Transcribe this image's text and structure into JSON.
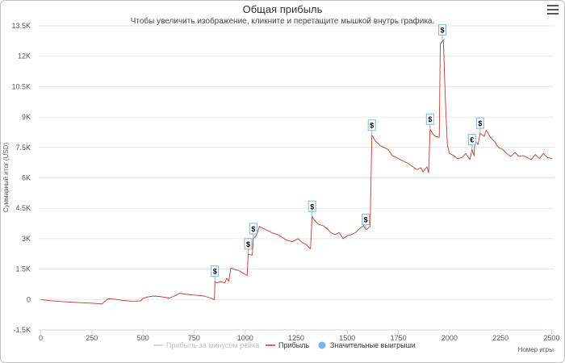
{
  "chart_data": {
    "type": "line",
    "title": "Общая прибыль",
    "subtitle": "Чтобы увеличить изображение, кликните и перетащите мышкой внутрь графика.",
    "xlabel": "Номер игры",
    "ylabel": "Суммарный итог (USD)",
    "xlim": [
      -10,
      2510
    ],
    "ylim": [
      -1500,
      13500
    ],
    "x_ticks": [
      "0",
      "250",
      "500",
      "750",
      "1000",
      "1250",
      "1500",
      "1750",
      "2000",
      "2250",
      "2500"
    ],
    "x_tick_values": [
      0,
      250,
      500,
      750,
      1000,
      1250,
      1500,
      1750,
      2000,
      2250,
      2500
    ],
    "y_ticks": [
      "-1.5K",
      "0",
      "1.5K",
      "3K",
      "4.5K",
      "6K",
      "7.5K",
      "9K",
      "10.5K",
      "12K",
      "13.5K"
    ],
    "y_tick_values": [
      -1500,
      0,
      1500,
      3000,
      4500,
      6000,
      7500,
      9000,
      10500,
      12000,
      13500
    ],
    "grid": true,
    "legend_position": "bottom",
    "series": [
      {
        "name": "Прибыль за минусом рейка",
        "color": "#cccccc",
        "hidden": true,
        "points": []
      },
      {
        "name": "Прибыль",
        "color": "#c0392b",
        "points": [
          [
            0,
            0
          ],
          [
            50,
            -60
          ],
          [
            100,
            -100
          ],
          [
            150,
            -130
          ],
          [
            200,
            -160
          ],
          [
            250,
            -180
          ],
          [
            300,
            -220
          ],
          [
            310,
            -120
          ],
          [
            330,
            30
          ],
          [
            360,
            20
          ],
          [
            400,
            -40
          ],
          [
            450,
            -90
          ],
          [
            490,
            -60
          ],
          [
            500,
            60
          ],
          [
            520,
            120
          ],
          [
            550,
            170
          ],
          [
            580,
            150
          ],
          [
            600,
            120
          ],
          [
            630,
            70
          ],
          [
            660,
            200
          ],
          [
            680,
            310
          ],
          [
            700,
            270
          ],
          [
            750,
            220
          ],
          [
            800,
            170
          ],
          [
            830,
            70
          ],
          [
            850,
            -10
          ],
          [
            852,
            900
          ],
          [
            860,
            820
          ],
          [
            880,
            880
          ],
          [
            900,
            820
          ],
          [
            910,
            1050
          ],
          [
            920,
            900
          ],
          [
            930,
            1550
          ],
          [
            950,
            1480
          ],
          [
            970,
            1420
          ],
          [
            990,
            1300
          ],
          [
            1010,
            1180
          ],
          [
            1015,
            2250
          ],
          [
            1025,
            2200
          ],
          [
            1035,
            2200
          ],
          [
            1040,
            3000
          ],
          [
            1050,
            3100
          ],
          [
            1060,
            3300
          ],
          [
            1070,
            3600
          ],
          [
            1100,
            3450
          ],
          [
            1130,
            3300
          ],
          [
            1160,
            3200
          ],
          [
            1200,
            2950
          ],
          [
            1230,
            2850
          ],
          [
            1260,
            3000
          ],
          [
            1280,
            2800
          ],
          [
            1300,
            2700
          ],
          [
            1320,
            2500
          ],
          [
            1328,
            4100
          ],
          [
            1340,
            3900
          ],
          [
            1360,
            3700
          ],
          [
            1380,
            3650
          ],
          [
            1400,
            3500
          ],
          [
            1420,
            3300
          ],
          [
            1440,
            3200
          ],
          [
            1460,
            3300
          ],
          [
            1480,
            3000
          ],
          [
            1500,
            3150
          ],
          [
            1520,
            3200
          ],
          [
            1540,
            3300
          ],
          [
            1560,
            3500
          ],
          [
            1580,
            3650
          ],
          [
            1590,
            3450
          ],
          [
            1600,
            3500
          ],
          [
            1612,
            3600
          ],
          [
            1620,
            8100
          ],
          [
            1640,
            7800
          ],
          [
            1660,
            7600
          ],
          [
            1700,
            7400
          ],
          [
            1720,
            7100
          ],
          [
            1760,
            6900
          ],
          [
            1800,
            6700
          ],
          [
            1840,
            6400
          ],
          [
            1860,
            6500
          ],
          [
            1870,
            6300
          ],
          [
            1890,
            6550
          ],
          [
            1898,
            6250
          ],
          [
            1905,
            8400
          ],
          [
            1920,
            8150
          ],
          [
            1930,
            8050
          ],
          [
            1950,
            8000
          ],
          [
            1955,
            12600
          ],
          [
            1970,
            12800
          ],
          [
            1980,
            9800
          ],
          [
            1990,
            7600
          ],
          [
            2000,
            7200
          ],
          [
            2020,
            7100
          ],
          [
            2040,
            6950
          ],
          [
            2060,
            7000
          ],
          [
            2080,
            7200
          ],
          [
            2100,
            6900
          ],
          [
            2110,
            7400
          ],
          [
            2120,
            7100
          ],
          [
            2125,
            7800
          ],
          [
            2140,
            7650
          ],
          [
            2150,
            8200
          ],
          [
            2170,
            8050
          ],
          [
            2180,
            8350
          ],
          [
            2200,
            8000
          ],
          [
            2220,
            7800
          ],
          [
            2240,
            7500
          ],
          [
            2260,
            7400
          ],
          [
            2280,
            7200
          ],
          [
            2300,
            7050
          ],
          [
            2320,
            7250
          ],
          [
            2340,
            7050
          ],
          [
            2360,
            7100
          ],
          [
            2380,
            7000
          ],
          [
            2400,
            6900
          ],
          [
            2420,
            7150
          ],
          [
            2440,
            6950
          ],
          [
            2460,
            7200
          ],
          [
            2480,
            7000
          ],
          [
            2500,
            6950
          ]
        ]
      },
      {
        "name": "Значительные выигрыши",
        "color": "#7cb5ec",
        "flags": [
          {
            "x": 852,
            "y": 900,
            "label": "$"
          },
          {
            "x": 1015,
            "y": 2250,
            "label": "$"
          },
          {
            "x": 1040,
            "y": 3000,
            "label": "$"
          },
          {
            "x": 1328,
            "y": 4100,
            "label": "$"
          },
          {
            "x": 1590,
            "y": 3450,
            "label": "$"
          },
          {
            "x": 1620,
            "y": 8100,
            "label": "$"
          },
          {
            "x": 1905,
            "y": 8400,
            "label": "$"
          },
          {
            "x": 1965,
            "y": 12800,
            "label": "$"
          },
          {
            "x": 2110,
            "y": 7400,
            "label": "€"
          },
          {
            "x": 2150,
            "y": 8200,
            "label": "$"
          }
        ]
      }
    ]
  }
}
